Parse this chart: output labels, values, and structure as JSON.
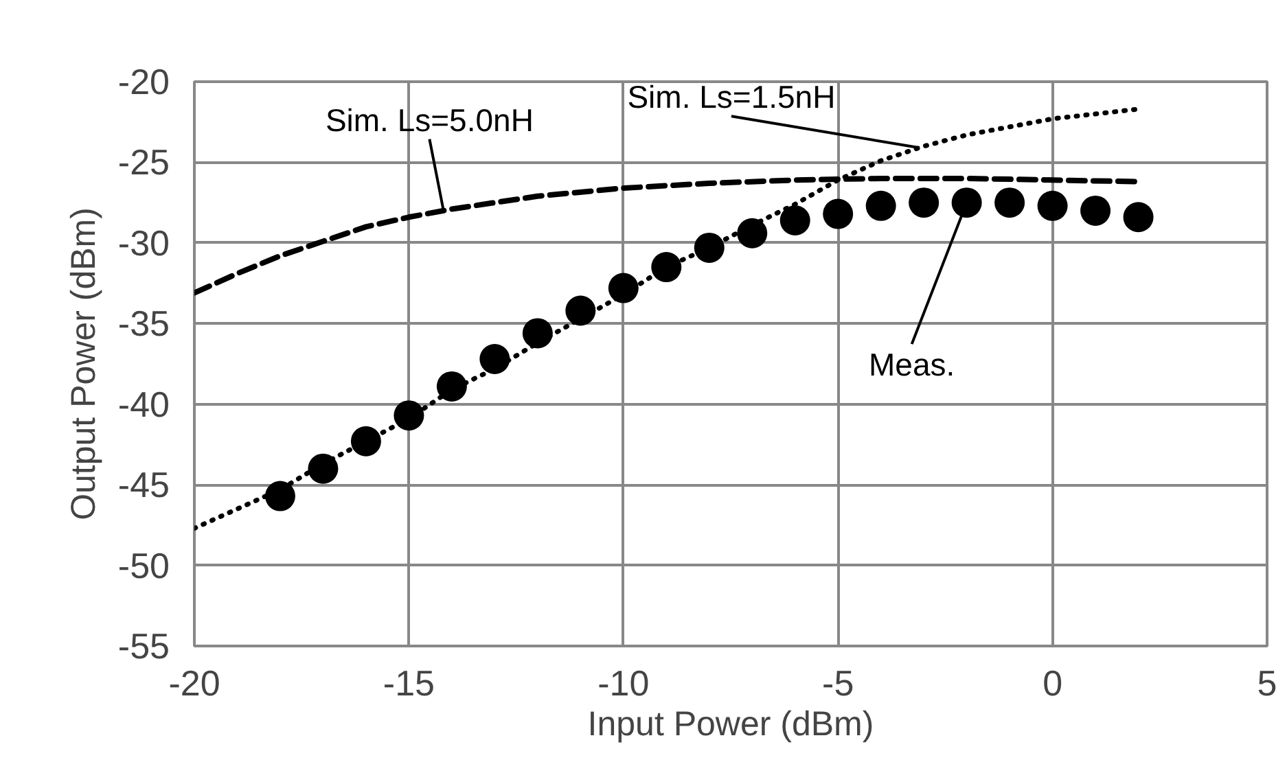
{
  "chart_data": {
    "type": "line",
    "xlabel": "Input Power (dBm)",
    "ylabel": "Output Power (dBm)",
    "xlim": [
      -20,
      5
    ],
    "xticks": [
      -20,
      -15,
      -10,
      -5,
      0,
      5
    ],
    "ylim": [
      -55,
      -20
    ],
    "yticks": [
      -55,
      -50,
      -45,
      -40,
      -35,
      -30,
      -25,
      -20
    ],
    "grid": true,
    "series": [
      {
        "line_style": "dashed",
        "marker": "none",
        "color": "#000000",
        "x": [
          -20,
          -19,
          -18,
          -17,
          -16,
          -15,
          -14,
          -12,
          -10,
          -8,
          -6,
          -4,
          -2,
          0,
          2
        ],
        "values": [
          -33.1,
          -31.9,
          -30.8,
          -29.9,
          -29.0,
          -28.4,
          -27.9,
          -27.1,
          -26.6,
          -26.3,
          -26.1,
          -26.0,
          -26.0,
          -26.1,
          -26.2
        ]
      },
      {
        "line_style": "dotted",
        "marker": "none",
        "color": "#000000",
        "x": [
          -20,
          -19,
          -18,
          -17,
          -16,
          -15,
          -14,
          -13,
          -12,
          -11,
          -10,
          -9,
          -8,
          -7,
          -6,
          -5,
          -4,
          -3,
          -2,
          -1,
          0,
          1,
          2
        ],
        "values": [
          -47.7,
          -46.5,
          -45.3,
          -43.7,
          -42.3,
          -40.9,
          -39.1,
          -37.8,
          -36.2,
          -34.7,
          -33.2,
          -31.5,
          -30.3,
          -28.9,
          -27.6,
          -26.1,
          -24.9,
          -24.0,
          -23.3,
          -22.8,
          -22.3,
          -22.0,
          -21.7
        ]
      },
      {
        "type": "scatter",
        "marker": "circle",
        "color": "#000000",
        "x": [
          -18,
          -17,
          -16,
          -15,
          -14,
          -13,
          -12,
          -11,
          -10,
          -9,
          -8,
          -7,
          -6,
          -5,
          -4,
          -3,
          -2,
          -1,
          0,
          1,
          2
        ],
        "values": [
          -45.7,
          -44.0,
          -42.3,
          -40.7,
          -38.9,
          -37.2,
          -35.6,
          -34.2,
          -32.8,
          -31.5,
          -30.3,
          -29.4,
          -28.6,
          -28.2,
          -27.7,
          -27.5,
          -27.5,
          -27.5,
          -27.7,
          -28.0,
          -28.4
        ]
      }
    ],
    "annotations": [
      {
        "text": "Sim. Ls=5.0nH",
        "x": -14.2,
        "y": -27.9
      },
      {
        "text": "Sim. Ls=1.5nH",
        "x": -3.1,
        "y": -24.1
      },
      {
        "text": "Meas.",
        "x": -2,
        "y": -27.5
      }
    ]
  }
}
